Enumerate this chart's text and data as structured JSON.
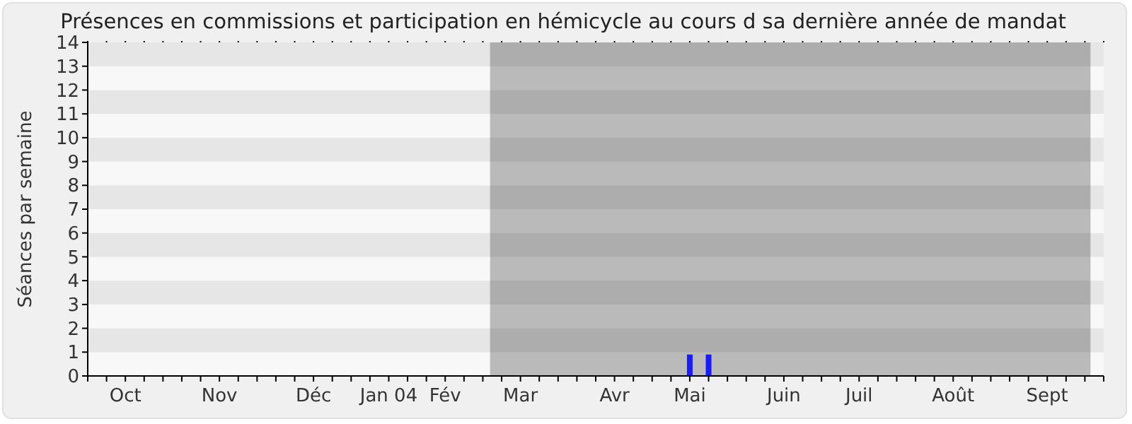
{
  "chart_data": {
    "type": "bar",
    "title": "Présences en commissions et participation en hémicycle au cours d sa dernière année de mandat",
    "ylabel": "Séances par semaine",
    "categories": [
      null,
      null,
      "Oct",
      null,
      null,
      null,
      null,
      "Nov",
      null,
      null,
      null,
      null,
      "Déc",
      null,
      null,
      null,
      "Jan 04",
      null,
      null,
      "Fév",
      null,
      null,
      null,
      "Mar",
      null,
      null,
      null,
      null,
      "Avr",
      null,
      null,
      null,
      "Mai",
      null,
      null,
      null,
      null,
      "Juin",
      null,
      null,
      null,
      "Juil",
      null,
      null,
      null,
      null,
      "Août",
      null,
      null,
      null,
      null,
      "Sept",
      null,
      null,
      null
    ],
    "values": [
      0,
      0,
      0,
      0,
      0,
      0,
      0,
      0,
      0,
      0,
      0,
      0,
      0,
      0,
      0,
      0,
      0,
      0,
      0,
      0,
      0,
      0,
      0,
      0,
      0,
      0,
      0,
      0,
      0,
      0,
      0,
      0,
      0.9,
      0.9,
      0,
      0,
      0,
      0,
      0,
      0,
      0,
      0,
      0,
      0,
      0,
      0,
      0,
      0,
      0,
      0,
      0,
      0,
      0,
      0,
      0
    ],
    "color": "#1a1aff",
    "ylim": [
      0,
      14
    ],
    "yticks": [
      0,
      1,
      2,
      3,
      4,
      5,
      6,
      7,
      8,
      9,
      10,
      11,
      12,
      13,
      14
    ]
  }
}
